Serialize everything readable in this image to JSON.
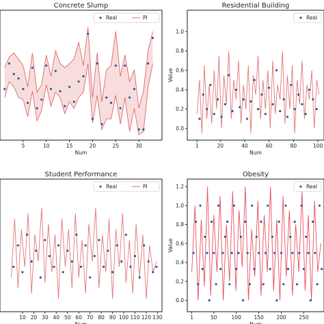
{
  "chart_data": [
    {
      "type": "line",
      "title": "Concrete Slump",
      "xlabel": "Num",
      "ylabel": "",
      "xlim": [
        0,
        35
      ],
      "ylim": [
        -0.1,
        1.12
      ],
      "grid": false,
      "legend": {
        "position": "top-right",
        "entries": [
          "Real",
          "PI"
        ],
        "columns": 2
      },
      "x_ticks": [
        5,
        10,
        15,
        20,
        25,
        30
      ],
      "y_ticks": [],
      "series": [
        {
          "name": "Real",
          "kind": "points",
          "color": "#2f5597",
          "x": [
            1,
            2,
            3,
            4,
            5,
            6,
            7,
            8,
            9,
            10,
            11,
            12,
            13,
            14,
            15,
            16,
            17,
            18,
            19,
            20,
            21,
            22,
            23,
            24,
            25,
            26,
            27,
            28,
            29,
            30,
            31,
            32,
            33
          ],
          "y": [
            0.38,
            0.62,
            0.52,
            0.48,
            0.38,
            0.25,
            0.58,
            0.2,
            0.28,
            0.6,
            0.38,
            0.55,
            0.36,
            0.22,
            0.4,
            0.26,
            0.45,
            0.5,
            0.9,
            0.1,
            0.62,
            0.05,
            0.3,
            0.25,
            0.6,
            0.2,
            0.6,
            0.3,
            0.38,
            0.0,
            0.0,
            0.62,
            0.86
          ]
        },
        {
          "name": "PI",
          "kind": "band",
          "color": "#e06666",
          "x": [
            1,
            2,
            3,
            4,
            5,
            6,
            7,
            8,
            9,
            10,
            11,
            12,
            13,
            14,
            15,
            16,
            17,
            18,
            19,
            20,
            21,
            22,
            23,
            24,
            25,
            26,
            27,
            28,
            29,
            30,
            31,
            32,
            33
          ],
          "upper": [
            0.58,
            0.68,
            0.72,
            0.66,
            0.6,
            0.4,
            0.72,
            0.35,
            0.42,
            0.7,
            0.5,
            0.74,
            0.62,
            0.58,
            0.62,
            0.66,
            0.82,
            0.6,
            0.96,
            0.3,
            0.72,
            0.26,
            0.56,
            0.6,
            0.92,
            0.5,
            0.7,
            0.45,
            0.56,
            0.2,
            0.36,
            0.74,
            0.92
          ],
          "lower": [
            0.3,
            0.45,
            0.4,
            0.3,
            0.28,
            0.12,
            0.36,
            0.08,
            0.18,
            0.42,
            0.22,
            0.35,
            0.3,
            0.15,
            0.26,
            0.2,
            0.3,
            0.35,
            0.62,
            0.06,
            0.32,
            0.0,
            0.1,
            0.1,
            0.32,
            0.05,
            0.3,
            -0.02,
            0.2,
            -0.05,
            -0.02,
            0.4,
            0.62
          ]
        }
      ]
    },
    {
      "type": "line",
      "title": "Residential Building",
      "xlabel": "Num",
      "ylabel": "Value",
      "xlim": [
        -7,
        105
      ],
      "ylim": [
        -0.12,
        1.22
      ],
      "grid": false,
      "legend": {
        "position": "top-right",
        "entries": [
          "Real"
        ],
        "columns": 1
      },
      "x_ticks": [
        1,
        20,
        40,
        60,
        80,
        100
      ],
      "y_ticks": [
        0.0,
        0.2,
        0.4,
        0.6,
        0.8,
        1.0
      ],
      "series": [
        {
          "name": "Real",
          "kind": "points",
          "color": "#2f5597",
          "x": [
            3,
            6,
            9,
            12,
            15,
            18,
            21,
            24,
            27,
            30,
            33,
            36,
            39,
            42,
            45,
            48,
            51,
            54,
            57,
            60,
            63,
            66,
            69,
            72,
            75,
            78,
            81,
            84,
            87,
            90,
            93,
            96,
            99
          ],
          "y": [
            0.1,
            0.35,
            0.2,
            0.45,
            0.15,
            0.3,
            0.12,
            0.25,
            0.55,
            0.18,
            0.4,
            0.22,
            0.3,
            0.1,
            0.28,
            0.5,
            0.2,
            0.35,
            0.15,
            0.42,
            0.25,
            0.6,
            0.18,
            0.3,
            0.12,
            0.45,
            0.2,
            0.35,
            0.25,
            0.15,
            0.4,
            0.3,
            0.2
          ]
        },
        {
          "name": "PI",
          "kind": "line",
          "color": "#e06666",
          "x": [
            1,
            3,
            5,
            7,
            9,
            11,
            13,
            15,
            17,
            19,
            21,
            23,
            25,
            27,
            29,
            31,
            33,
            35,
            37,
            39,
            41,
            43,
            45,
            47,
            49,
            51,
            53,
            55,
            57,
            59,
            61,
            63,
            65,
            67,
            69,
            71,
            73,
            75,
            77,
            79,
            81,
            83,
            85,
            87,
            89,
            91,
            93,
            95,
            97,
            99,
            101
          ],
          "y": [
            0.15,
            0.5,
            -0.05,
            0.65,
            0.1,
            0.45,
            0.05,
            0.6,
            0.2,
            0.75,
            0.0,
            0.55,
            0.25,
            0.8,
            0.1,
            0.5,
            0.3,
            0.7,
            0.05,
            0.45,
            0.2,
            0.65,
            -0.05,
            0.55,
            0.35,
            0.75,
            0.1,
            0.5,
            0.2,
            0.6,
            0.0,
            0.7,
            0.15,
            0.45,
            0.3,
            0.8,
            0.05,
            0.55,
            0.2,
            0.65,
            -0.05,
            0.5,
            0.25,
            0.7,
            0.1,
            0.45,
            0.3,
            0.6,
            0.0,
            0.5,
            0.35
          ]
        }
      ]
    },
    {
      "type": "line",
      "title": "Student Performance",
      "xlabel": "Num",
      "ylabel": "",
      "xlim": [
        -10,
        134
      ],
      "ylim": [
        -0.12,
        1.12
      ],
      "grid": false,
      "legend": {
        "position": "top-right",
        "entries": [
          "Real",
          "PI"
        ],
        "columns": 2
      },
      "x_ticks": [
        10,
        20,
        30,
        40,
        50,
        60,
        70,
        80,
        90,
        100,
        110,
        120,
        130
      ],
      "y_ticks": [],
      "series": [
        {
          "name": "Real",
          "kind": "points",
          "color": "#2f5597",
          "x": [
            2,
            6,
            10,
            14,
            18,
            22,
            26,
            30,
            34,
            38,
            42,
            46,
            50,
            54,
            58,
            62,
            66,
            70,
            74,
            78,
            82,
            86,
            90,
            94,
            98,
            102,
            106,
            110,
            114,
            118,
            122,
            126,
            129
          ],
          "y": [
            0.3,
            0.5,
            0.25,
            0.6,
            0.35,
            0.45,
            0.2,
            0.55,
            0.4,
            0.3,
            0.5,
            0.25,
            0.45,
            0.35,
            0.6,
            0.3,
            0.5,
            0.2,
            0.4,
            0.55,
            0.3,
            0.45,
            0.25,
            0.5,
            0.35,
            0.6,
            0.3,
            0.4,
            0.2,
            0.5,
            0.35,
            0.25,
            0.3
          ]
        },
        {
          "name": "PI",
          "kind": "line",
          "color": "#e06666",
          "x": [
            0,
            3,
            6,
            9,
            12,
            15,
            18,
            21,
            24,
            27,
            30,
            33,
            36,
            39,
            42,
            45,
            48,
            51,
            54,
            57,
            60,
            63,
            66,
            69,
            72,
            75,
            78,
            81,
            84,
            87,
            90,
            93,
            96,
            99,
            102,
            105,
            108,
            111,
            114,
            117,
            120,
            123,
            126,
            129
          ],
          "y": [
            0.2,
            0.75,
            0.1,
            0.65,
            0.3,
            0.8,
            0.05,
            0.6,
            0.35,
            0.85,
            0.15,
            0.7,
            0.25,
            0.6,
            0.0,
            0.75,
            0.3,
            0.65,
            0.1,
            0.8,
            0.2,
            0.55,
            0.05,
            0.7,
            0.35,
            0.85,
            0.1,
            0.6,
            0.25,
            0.75,
            0.0,
            0.65,
            0.3,
            0.8,
            0.15,
            0.55,
            0.05,
            0.7,
            0.2,
            0.6,
            0.0,
            0.5,
            0.25,
            0.35
          ]
        }
      ]
    },
    {
      "type": "line",
      "title": "Obesity",
      "xlabel": "Num",
      "ylabel": "Value",
      "xlim": [
        -9,
        295
      ],
      "ylim": [
        -0.12,
        1.28
      ],
      "grid": false,
      "legend": {
        "position": "top-right",
        "entries": [
          "Real"
        ],
        "columns": 1
      },
      "x_ticks": [
        1,
        50,
        100,
        150,
        200,
        250
      ],
      "x_tick_labels": [
        "1",
        "50",
        "100",
        "150",
        "200",
        "250"
      ],
      "y_ticks": [
        0.0,
        0.2,
        0.4,
        0.6,
        0.8,
        1.0,
        1.2
      ],
      "series": [
        {
          "name": "Real",
          "kind": "points",
          "color": "#2f5597",
          "x": [
            5,
            10,
            15,
            20,
            25,
            30,
            35,
            40,
            45,
            50,
            55,
            60,
            65,
            70,
            75,
            80,
            85,
            90,
            95,
            100,
            105,
            110,
            115,
            120,
            125,
            130,
            135,
            140,
            145,
            150,
            155,
            160,
            165,
            170,
            175,
            180,
            185,
            190,
            195,
            200,
            205,
            210,
            215,
            220,
            225,
            230,
            235,
            240,
            245,
            250,
            255,
            260,
            265,
            270,
            275,
            280,
            285,
            290
          ],
          "y": [
            0.5,
            0.83,
            0.17,
            1.0,
            0.33,
            0.67,
            0.5,
            0.0,
            0.83,
            0.5,
            0.17,
            1.0,
            0.33,
            0.5,
            0.67,
            0.83,
            0.17,
            0.5,
            1.0,
            0.33,
            0.5,
            0.67,
            0.0,
            0.83,
            0.5,
            0.17,
            1.0,
            0.33,
            0.67,
            0.5,
            0.83,
            0.17,
            0.5,
            1.0,
            0.33,
            0.67,
            0.5,
            0.0,
            0.83,
            0.5,
            0.17,
            1.0,
            0.33,
            0.67,
            0.5,
            0.83,
            0.17,
            0.5,
            1.0,
            0.33,
            0.67,
            0.5,
            0.0,
            0.83,
            0.5,
            0.17,
            1.0,
            0.33
          ]
        },
        {
          "name": "PI",
          "kind": "line",
          "color": "#e63946",
          "x": [
            1,
            8,
            15,
            22,
            29,
            36,
            43,
            50,
            57,
            64,
            71,
            78,
            85,
            92,
            99,
            106,
            113,
            120,
            127,
            134,
            141,
            148,
            155,
            162,
            169,
            176,
            183,
            190,
            197,
            204,
            211,
            218,
            225,
            232,
            239,
            246,
            253,
            260,
            267,
            274,
            281,
            288
          ],
          "y": [
            0.3,
            1.0,
            0.0,
            0.85,
            0.15,
            1.2,
            0.05,
            0.9,
            0.3,
            1.1,
            0.0,
            0.8,
            0.2,
            1.15,
            0.1,
            0.95,
            0.35,
            1.2,
            0.0,
            0.75,
            0.25,
            1.05,
            0.05,
            0.9,
            0.3,
            1.2,
            0.1,
            0.85,
            0.0,
            1.1,
            0.25,
            0.95,
            0.05,
            0.8,
            0.3,
            1.15,
            0.1,
            0.9,
            0.0,
            1.05,
            0.3,
            0.6
          ]
        }
      ]
    }
  ]
}
